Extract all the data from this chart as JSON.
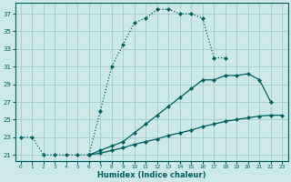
{
  "xlabel": "Humidex (Indice chaleur)",
  "xlim": [
    -0.5,
    23.5
  ],
  "ylim": [
    20.3,
    38.2
  ],
  "yticks": [
    21,
    23,
    25,
    27,
    29,
    31,
    33,
    35,
    37
  ],
  "xticks": [
    0,
    1,
    2,
    3,
    4,
    5,
    6,
    7,
    8,
    9,
    10,
    11,
    12,
    13,
    14,
    15,
    16,
    17,
    18,
    19,
    20,
    21,
    22,
    23
  ],
  "bg_color": "#cce8e8",
  "grid_color": "#aacece",
  "line_color": "#005f5f",
  "curve_dotted": {
    "x": [
      0,
      1,
      2,
      3,
      4,
      5,
      6,
      7,
      8,
      9,
      10,
      11,
      12,
      13,
      14,
      15,
      16,
      17,
      18
    ],
    "y": [
      23,
      23,
      21,
      21,
      21,
      21,
      21,
      26,
      31,
      33.5,
      36,
      36.5,
      37.5,
      37.5,
      37,
      37,
      36.5,
      32,
      32
    ]
  },
  "curve_mid": {
    "x": [
      6,
      7,
      8,
      9,
      10,
      11,
      12,
      13,
      14,
      15,
      16,
      17,
      18,
      19,
      20,
      21,
      22
    ],
    "y": [
      21,
      21.5,
      22,
      22.5,
      23.5,
      24.5,
      25.5,
      26.5,
      27.5,
      28.5,
      29.5,
      29.5,
      30,
      30,
      30.2,
      29.5,
      27
    ]
  },
  "curve_bot": {
    "x": [
      6,
      7,
      8,
      9,
      10,
      11,
      12,
      13,
      14,
      15,
      16,
      17,
      18,
      19,
      20,
      21,
      22,
      23
    ],
    "y": [
      21,
      21.2,
      21.5,
      21.8,
      22.2,
      22.5,
      22.8,
      23.2,
      23.5,
      23.8,
      24.2,
      24.5,
      24.8,
      25.0,
      25.2,
      25.4,
      25.5,
      25.5
    ]
  }
}
